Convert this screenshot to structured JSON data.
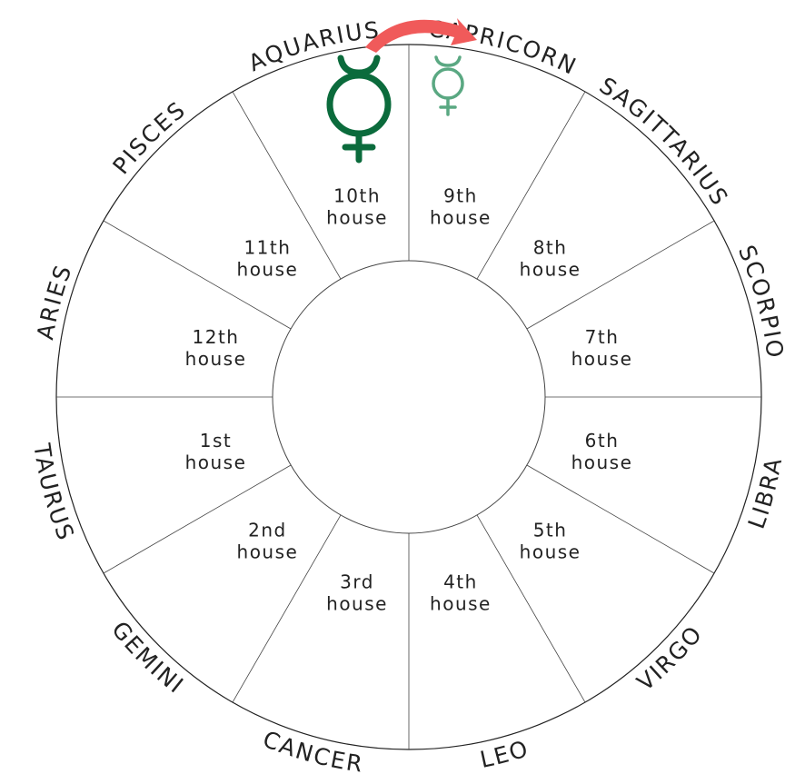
{
  "signs": [
    "ARIES",
    "TAURUS",
    "GEMINI",
    "CANCER",
    "LEO",
    "VIRGO",
    "LIBRA",
    "SCORPIO",
    "SAGITTARIUS",
    "CAPRICORN",
    "AQUARIUS",
    "PISCES"
  ],
  "houses": [
    {
      "number": "1st",
      "word": "house"
    },
    {
      "number": "2nd",
      "word": "house"
    },
    {
      "number": "3rd",
      "word": "house"
    },
    {
      "number": "4th",
      "word": "house"
    },
    {
      "number": "5th",
      "word": "house"
    },
    {
      "number": "6th",
      "word": "house"
    },
    {
      "number": "7th",
      "word": "house"
    },
    {
      "number": "8th",
      "word": "house"
    },
    {
      "number": "9th",
      "word": "house"
    },
    {
      "number": "10th",
      "word": "house"
    },
    {
      "number": "11th",
      "word": "house"
    },
    {
      "number": "12th",
      "word": "house"
    }
  ]
}
